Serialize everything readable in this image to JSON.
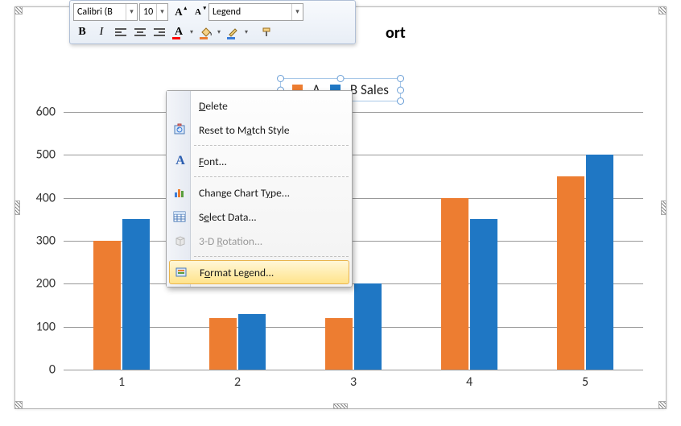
{
  "chart": {
    "title_visible": "ort",
    "legend": {
      "series": [
        {
          "label": "A",
          "color": "#ed7d31"
        },
        {
          "label": "B Sales",
          "color": "#1f77c4"
        }
      ]
    },
    "type": "bar",
    "categories": [
      "1",
      "2",
      "3",
      "4",
      "5"
    ],
    "series": [
      {
        "name": "A",
        "color": "#ed7d31",
        "values": [
          300,
          120,
          120,
          400,
          450
        ]
      },
      {
        "name": "B Sales",
        "color": "#1f77c4",
        "values": [
          350,
          130,
          200,
          350,
          500
        ]
      }
    ],
    "ylim": [
      0,
      600
    ],
    "ytick_step": 100,
    "gridline_color": "#999999",
    "bar_group_width_pct": 10,
    "bar_gap_pct": 0.5
  },
  "mini_toolbar": {
    "font_name": "Calibri (B",
    "font_size": "10",
    "style_selector": "Legend",
    "bold": "B",
    "italic": "I",
    "font_color": "#ff0000",
    "fill_color": "#ed7d31",
    "border_color": "#3a7cd8"
  },
  "context_menu": {
    "items": [
      {
        "key": "delete",
        "label_plain": "Delete",
        "icon": null,
        "enabled": true
      },
      {
        "key": "reset",
        "label_plain": "Reset to Match Style",
        "icon": "reset",
        "enabled": true
      },
      {
        "sep": true
      },
      {
        "key": "font",
        "label_plain": "Font...",
        "icon": "font",
        "enabled": true
      },
      {
        "sep": true
      },
      {
        "key": "change_type",
        "label_plain": "Change Chart Type...",
        "icon": "chart",
        "enabled": true
      },
      {
        "key": "select_data",
        "label_plain": "Select Data...",
        "icon": "table",
        "enabled": true
      },
      {
        "key": "rotation",
        "label_plain": "3-D Rotation...",
        "icon": "cube",
        "enabled": false
      },
      {
        "sep": true
      },
      {
        "key": "format_legend",
        "label_plain": "Format Legend...",
        "icon": "format",
        "enabled": true,
        "hover": true
      }
    ]
  }
}
